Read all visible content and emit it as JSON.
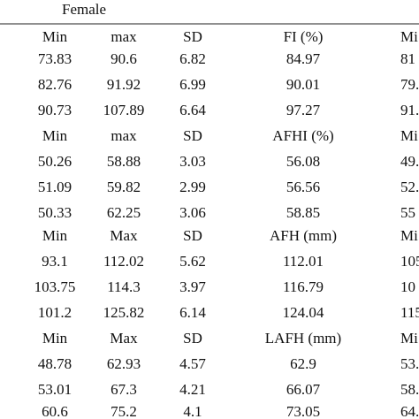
{
  "header": {
    "title": "Female"
  },
  "table": {
    "rows": [
      [
        "Min",
        "max",
        "SD",
        "FI (%)",
        "Mi"
      ],
      [
        "73.83",
        "90.6",
        "6.82",
        "84.97",
        "81"
      ],
      [
        "82.76",
        "91.92",
        "6.99",
        "90.01",
        "79."
      ],
      [
        "90.73",
        "107.89",
        "6.64",
        "97.27",
        "91."
      ],
      [
        "Min",
        "max",
        "SD",
        "AFHI (%)",
        "Mi"
      ],
      [
        "50.26",
        "58.88",
        "3.03",
        "56.08",
        "49."
      ],
      [
        "51.09",
        "59.82",
        "2.99",
        "56.56",
        "52."
      ],
      [
        "50.33",
        "62.25",
        "3.06",
        "58.85",
        "55"
      ],
      [
        "Min",
        "Max",
        "SD",
        "AFH (mm)",
        "Mi"
      ],
      [
        "93.1",
        "112.02",
        "5.62",
        "112.01",
        "105"
      ],
      [
        "103.75",
        "114.3",
        "3.97",
        "116.79",
        "10"
      ],
      [
        "101.2",
        "125.82",
        "6.14",
        "124.04",
        "115"
      ],
      [
        "Min",
        "Max",
        "SD",
        "LAFH (mm)",
        "Mi"
      ],
      [
        "48.78",
        "62.93",
        "4.57",
        "62.9",
        "53."
      ],
      [
        "53.01",
        "67.3",
        "4.21",
        "66.07",
        "58."
      ],
      [
        "60.6",
        "75.2",
        "4.1",
        "73.05",
        "64."
      ]
    ]
  }
}
